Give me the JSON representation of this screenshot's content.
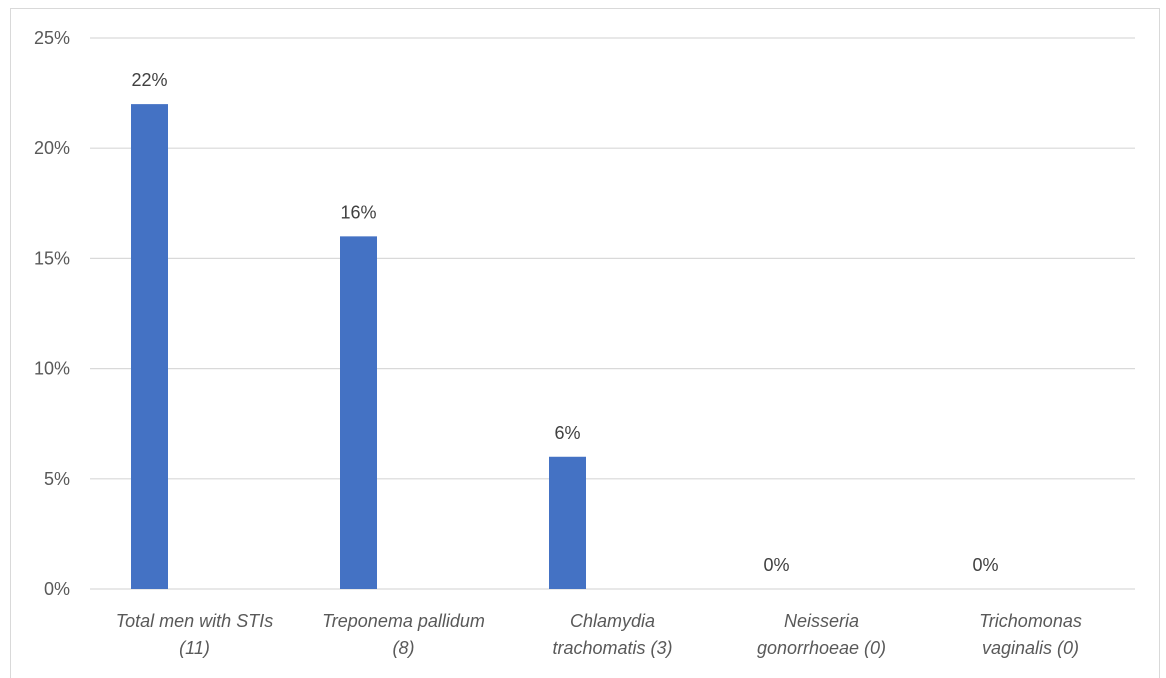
{
  "chart_data": {
    "type": "bar",
    "categories": [
      [
        "Total men with STIs",
        "(11)"
      ],
      [
        "Treponema pallidum",
        "(8)"
      ],
      [
        "Chlamydia",
        "trachomatis (3)"
      ],
      [
        "Neisseria",
        "gonorrhoeae (0)"
      ],
      [
        "Trichomonas",
        "vaginalis (0)"
      ]
    ],
    "values": [
      22,
      16,
      6,
      0,
      0
    ],
    "data_labels": [
      "22%",
      "16%",
      "6%",
      "0%",
      "0%"
    ],
    "y_ticks": [
      0,
      5,
      10,
      15,
      20,
      25
    ],
    "y_tick_labels": [
      "0%",
      "5%",
      "10%",
      "15%",
      "20%",
      "25%"
    ],
    "ylim": [
      0,
      25
    ],
    "grid": true,
    "legend": "none",
    "bar_color": "#4472c4",
    "grid_color": "#d9d9d9",
    "title": "",
    "xlabel": "",
    "ylabel": ""
  }
}
